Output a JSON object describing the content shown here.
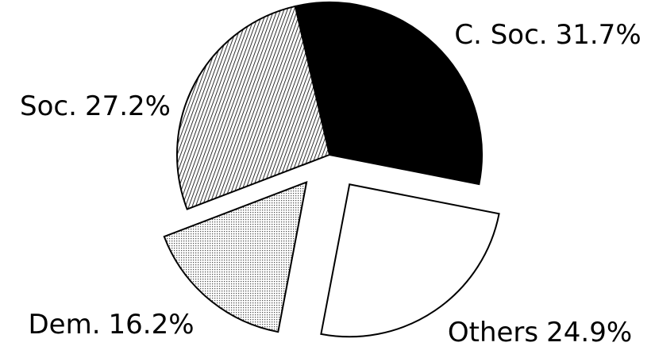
{
  "chart_data": {
    "type": "pie",
    "categories": [
      "C. Soc.",
      "Others",
      "Dem.",
      "Soc."
    ],
    "values": [
      31.7,
      24.9,
      16.2,
      27.2
    ],
    "value_labels": [
      "31.7%",
      "24.9%",
      "16.2%",
      "27.2%"
    ],
    "colors": [
      "#000000",
      "#ffffff",
      "#bbbbbb",
      "#888888"
    ],
    "patterns": [
      "solid",
      "solid",
      "dots",
      "hatch"
    ],
    "explode": [
      false,
      true,
      true,
      false
    ]
  }
}
